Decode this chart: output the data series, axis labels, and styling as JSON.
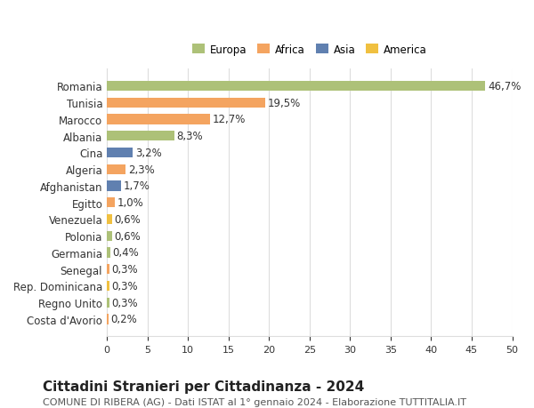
{
  "countries": [
    "Romania",
    "Tunisia",
    "Marocco",
    "Albania",
    "Cina",
    "Algeria",
    "Afghanistan",
    "Egitto",
    "Venezuela",
    "Polonia",
    "Germania",
    "Senegal",
    "Rep. Dominicana",
    "Regno Unito",
    "Costa d'Avorio"
  ],
  "values": [
    46.7,
    19.5,
    12.7,
    8.3,
    3.2,
    2.3,
    1.7,
    1.0,
    0.6,
    0.6,
    0.4,
    0.3,
    0.3,
    0.3,
    0.2
  ],
  "labels": [
    "46,7%",
    "19,5%",
    "12,7%",
    "8,3%",
    "3,2%",
    "2,3%",
    "1,7%",
    "1,0%",
    "0,6%",
    "0,6%",
    "0,4%",
    "0,3%",
    "0,3%",
    "0,3%",
    "0,2%"
  ],
  "continents": [
    "Europa",
    "Africa",
    "Africa",
    "Europa",
    "Asia",
    "Africa",
    "Asia",
    "Africa",
    "America",
    "Europa",
    "Europa",
    "Africa",
    "America",
    "Europa",
    "Africa"
  ],
  "colors": {
    "Europa": "#adc178",
    "Africa": "#f4a460",
    "Asia": "#6080b0",
    "America": "#f0c040"
  },
  "legend_order": [
    "Europa",
    "Africa",
    "Asia",
    "America"
  ],
  "legend_colors": [
    "#adc178",
    "#f4a460",
    "#6080b0",
    "#f0c040"
  ],
  "title": "Cittadini Stranieri per Cittadinanza - 2024",
  "subtitle": "COMUNE DI RIBERA (AG) - Dati ISTAT al 1° gennaio 2024 - Elaborazione TUTTITALIA.IT",
  "xlim": [
    0,
    50
  ],
  "xticks": [
    0,
    5,
    10,
    15,
    20,
    25,
    30,
    35,
    40,
    45,
    50
  ],
  "bar_height": 0.6,
  "background_color": "#ffffff",
  "grid_color": "#dddddd",
  "label_fontsize": 8.5,
  "tick_fontsize": 8,
  "title_fontsize": 11,
  "subtitle_fontsize": 8
}
